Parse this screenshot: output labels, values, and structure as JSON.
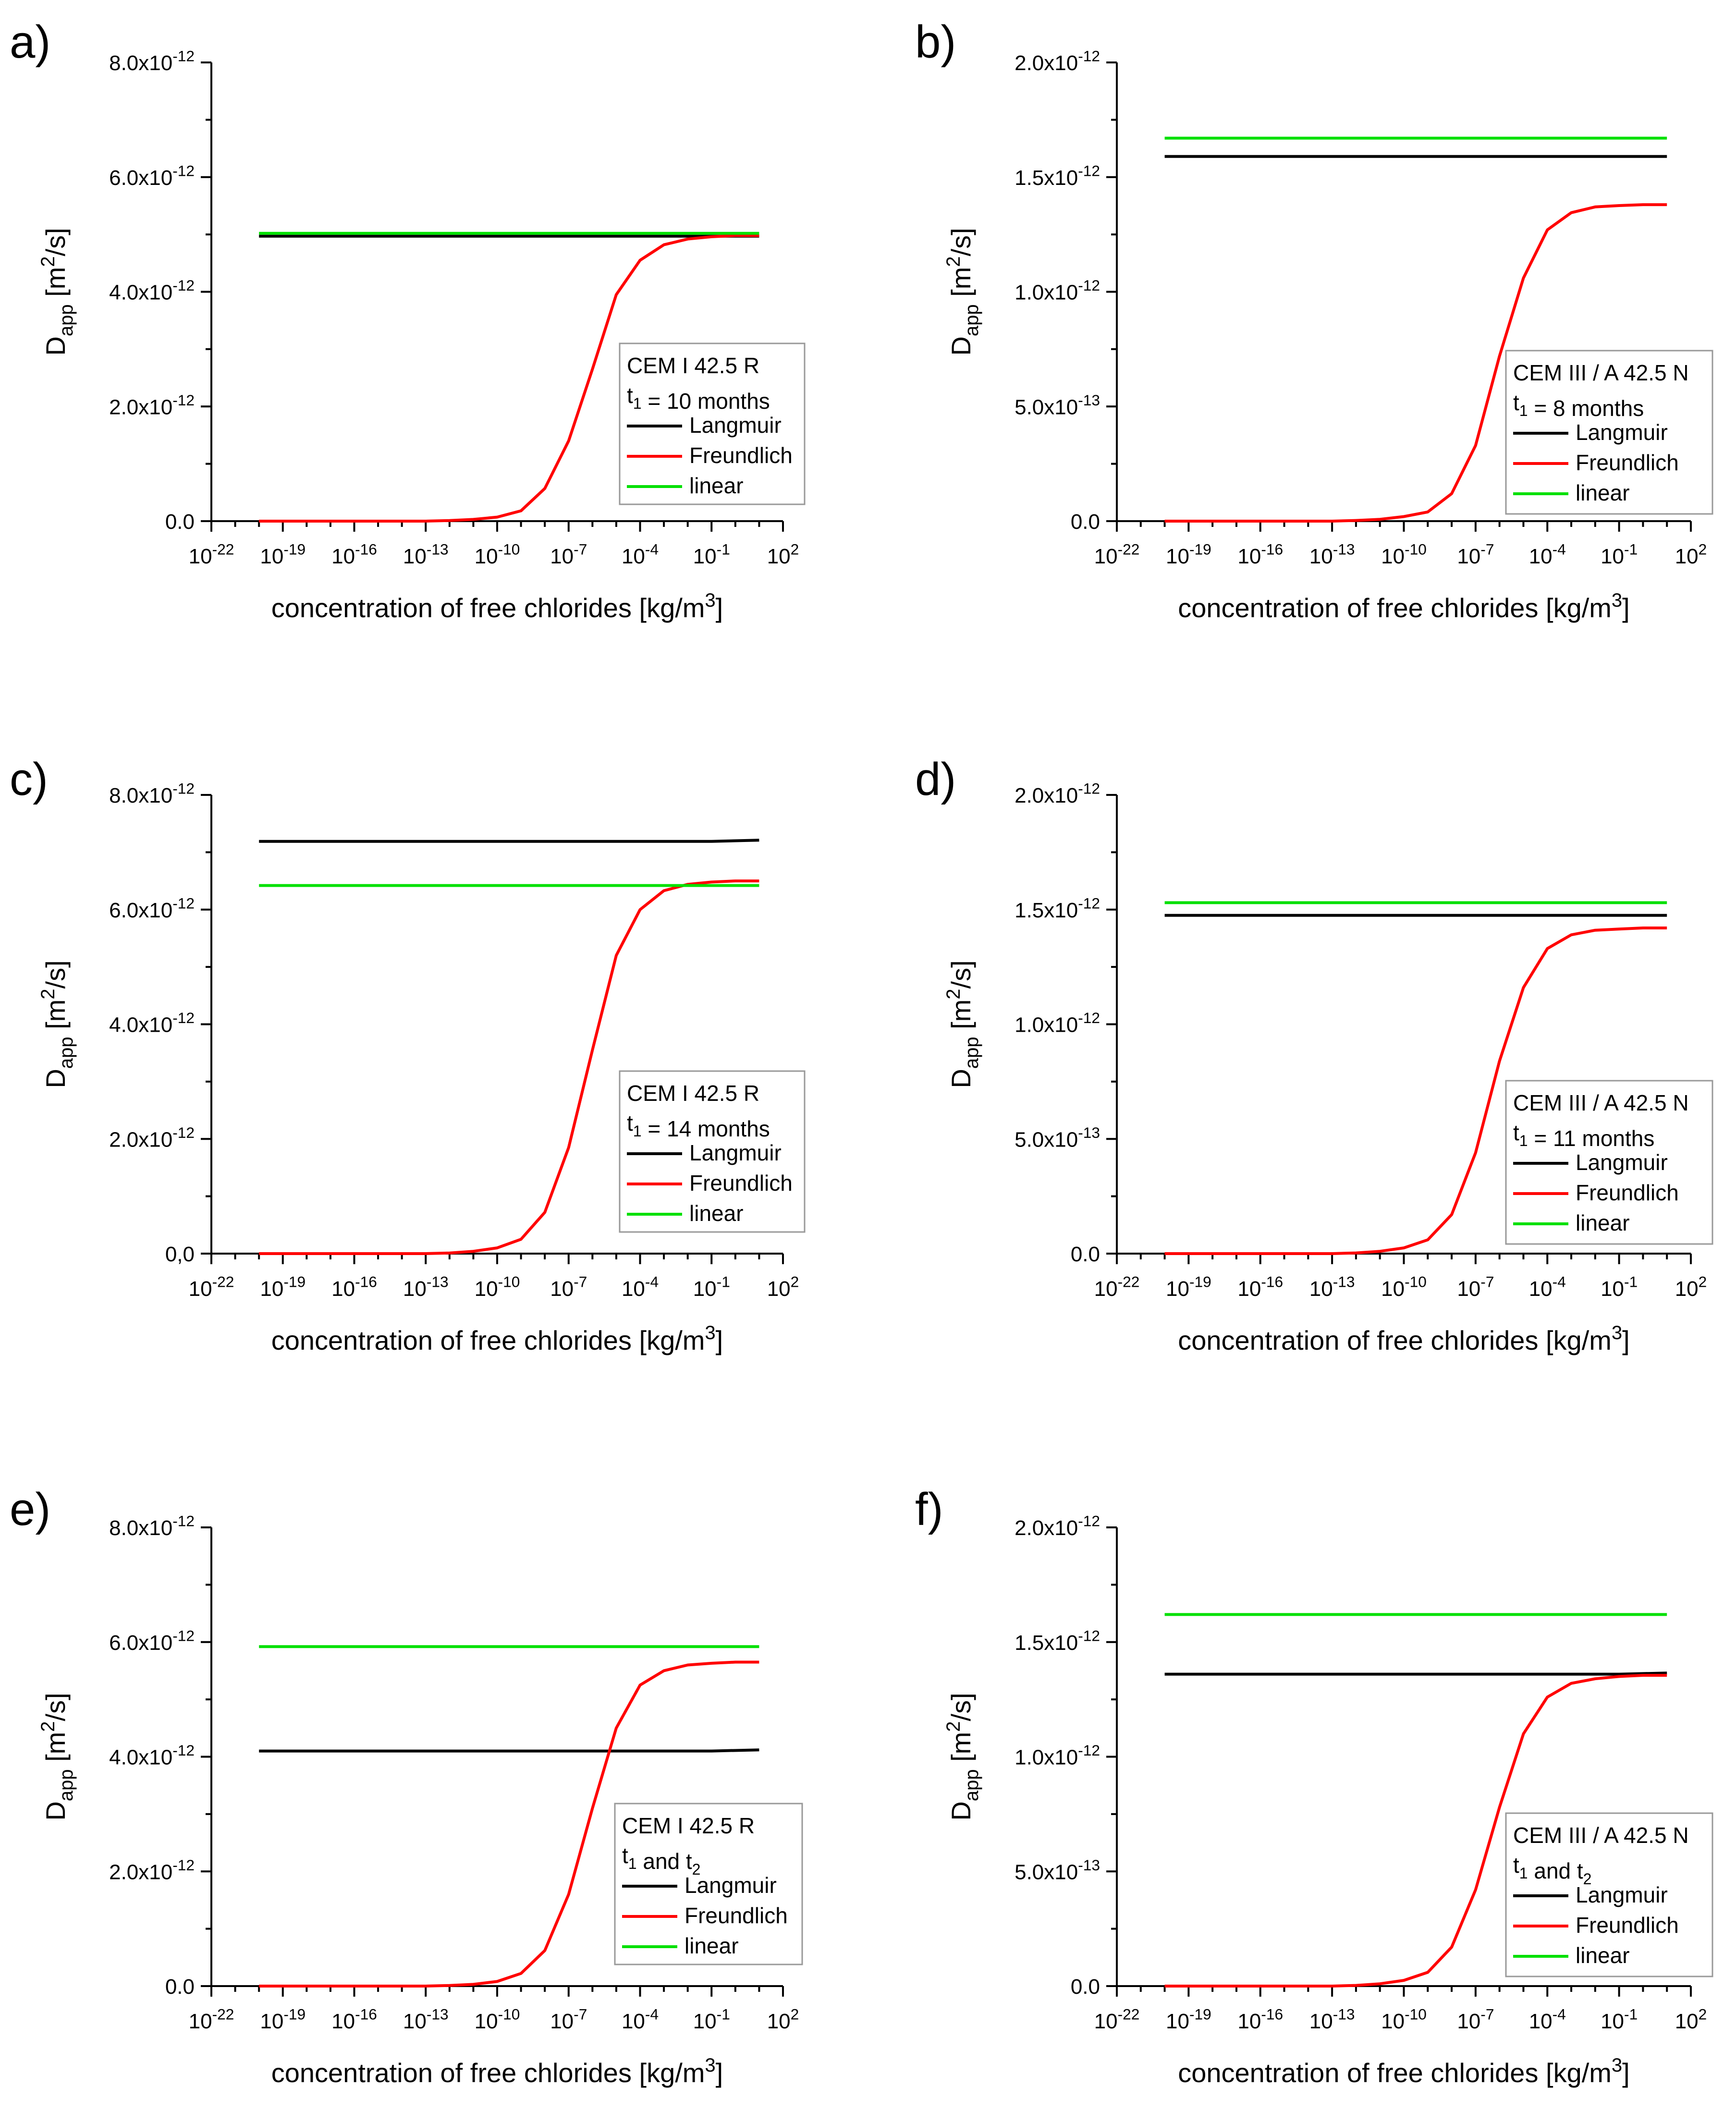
{
  "figure": {
    "panel_labels": [
      "a)",
      "b)",
      "c)",
      "d)",
      "e)",
      "f)"
    ]
  },
  "chart_data": [
    {
      "type": "line",
      "panel": "a)",
      "xlabel": "concentration of free chlorides [kg/m3]",
      "ylabel": "Dapp [m2/s]",
      "xscale": "log",
      "xlim": [
        1e-22,
        100.0
      ],
      "ylim": [
        0,
        8e-12
      ],
      "xticks": [
        "10-22",
        "10-19",
        "10-16",
        "10-13",
        "10-10",
        "10-7",
        "10-4",
        "10-1",
        "102"
      ],
      "yticks": [
        "0.0",
        "2.0x10-12",
        "4.0x10-12",
        "6.0x10-12",
        "8.0x10-12"
      ],
      "legend": {
        "position": "lower-right",
        "title": [
          "CEM I 42.5 R",
          "t1 = 10 months"
        ]
      },
      "series": [
        {
          "name": "Langmuir",
          "color": "#000000",
          "x": [
            1e-20,
            10
          ],
          "y": [
            4.97e-12,
            4.97e-12
          ]
        },
        {
          "name": "Freundlich",
          "color": "#ff0000",
          "x": [
            1e-20,
            1e-19,
            1e-18,
            1e-17,
            1e-16,
            1e-15,
            1e-14,
            1e-13,
            1e-12,
            1e-11,
            1e-10,
            1e-09,
            1e-08,
            1e-07,
            1e-06,
            1e-05,
            0.0001,
            0.001,
            0.01,
            0.1,
            1,
            10
          ],
          "y": [
            0,
            0,
            0,
            0,
            0,
            0,
            0,
            0,
            1e-14,
            3e-14,
            7e-14,
            1.8e-13,
            5.7e-13,
            1.4e-12,
            2.65e-12,
            3.95e-12,
            4.55e-12,
            4.82e-12,
            4.92e-12,
            4.96e-12,
            4.98e-12,
            4.98e-12
          ]
        },
        {
          "name": "linear",
          "color": "#00e000",
          "x": [
            1e-20,
            10
          ],
          "y": [
            5.02e-12,
            5.02e-12
          ]
        }
      ]
    },
    {
      "type": "line",
      "panel": "b)",
      "xlabel": "concentration of free chlorides [kg/m3]",
      "ylabel": "Dapp [m2/s]",
      "xscale": "log",
      "xlim": [
        1e-22,
        100.0
      ],
      "ylim": [
        0,
        2e-12
      ],
      "xticks": [
        "10-22",
        "10-19",
        "10-16",
        "10-13",
        "10-10",
        "10-7",
        "10-4",
        "10-1",
        "102"
      ],
      "yticks": [
        "0.0",
        "5.0x10-13",
        "1.0x10-12",
        "1.5x10-12",
        "2.0x10-12"
      ],
      "legend": {
        "position": "lower-right",
        "title": [
          "CEM III / A 42.5 N",
          "t1 = 8 months"
        ]
      },
      "series": [
        {
          "name": "Langmuir",
          "color": "#000000",
          "x": [
            1e-20,
            10
          ],
          "y": [
            1.59e-12,
            1.59e-12
          ]
        },
        {
          "name": "Freundlich",
          "color": "#ff0000",
          "x": [
            1e-20,
            1e-19,
            1e-18,
            1e-17,
            1e-16,
            1e-15,
            1e-14,
            1e-13,
            1e-12,
            1e-11,
            1e-10,
            1e-09,
            1e-08,
            1e-07,
            1e-06,
            1e-05,
            0.0001,
            0.001,
            0.01,
            0.1,
            1,
            10
          ],
          "y": [
            0,
            0,
            0,
            0,
            0,
            0,
            0,
            0,
            3e-15,
            8e-15,
            2e-14,
            4e-14,
            1.2e-13,
            3.3e-13,
            7.2e-13,
            1.06e-12,
            1.27e-12,
            1.345e-12,
            1.37e-12,
            1.376e-12,
            1.38e-12,
            1.38e-12
          ]
        },
        {
          "name": "linear",
          "color": "#00e000",
          "x": [
            1e-20,
            10
          ],
          "y": [
            1.67e-12,
            1.67e-12
          ]
        }
      ]
    },
    {
      "type": "line",
      "panel": "c)",
      "xlabel": "concentration of free chlorides [kg/m3]",
      "ylabel": "Dapp [m2/s]",
      "xscale": "log",
      "xlim": [
        1e-22,
        100.0
      ],
      "ylim": [
        0,
        8e-12
      ],
      "xticks": [
        "10-22",
        "10-19",
        "10-16",
        "10-13",
        "10-10",
        "10-7",
        "10-4",
        "10-1",
        "102"
      ],
      "yticks": [
        "0,0",
        "2.0x10-12",
        "4.0x10-12",
        "6.0x10-12",
        "8.0x10-12"
      ],
      "legend": {
        "position": "lower-right",
        "title": [
          "CEM I 42.5 R",
          "t1 = 14 months"
        ]
      },
      "series": [
        {
          "name": "Langmuir",
          "color": "#000000",
          "x": [
            1e-20,
            0.1,
            10
          ],
          "y": [
            7.19e-12,
            7.19e-12,
            7.21e-12
          ]
        },
        {
          "name": "Freundlich",
          "color": "#ff0000",
          "x": [
            1e-20,
            1e-19,
            1e-18,
            1e-17,
            1e-16,
            1e-15,
            1e-14,
            1e-13,
            1e-12,
            1e-11,
            1e-10,
            1e-09,
            1e-08,
            1e-07,
            1e-06,
            1e-05,
            0.0001,
            0.001,
            0.01,
            0.1,
            1,
            10
          ],
          "y": [
            0,
            0,
            0,
            0,
            0,
            0,
            0,
            0,
            1e-14,
            4e-14,
            1e-13,
            2.5e-13,
            7.2e-13,
            1.85e-12,
            3.55e-12,
            5.2e-12,
            6e-12,
            6.33e-12,
            6.44e-12,
            6.48e-12,
            6.5e-12,
            6.5e-12
          ]
        },
        {
          "name": "linear",
          "color": "#00e000",
          "x": [
            1e-20,
            10
          ],
          "y": [
            6.42e-12,
            6.42e-12
          ]
        }
      ]
    },
    {
      "type": "line",
      "panel": "d)",
      "xlabel": "concentration of free chlorides [kg/m3]",
      "ylabel": "Dapp [m2/s]",
      "xscale": "log",
      "xlim": [
        1e-22,
        100.0
      ],
      "ylim": [
        0,
        2e-12
      ],
      "xticks": [
        "10-22",
        "10-19",
        "10-16",
        "10-13",
        "10-10",
        "10-7",
        "10-4",
        "10-1",
        "102"
      ],
      "yticks": [
        "0.0",
        "5.0x10-13",
        "1.0x10-12",
        "1.5x10-12",
        "2.0x10-12"
      ],
      "legend": {
        "position": "lower-right",
        "title": [
          "CEM III / A 42.5 N",
          "t1 = 11 months"
        ]
      },
      "series": [
        {
          "name": "Langmuir",
          "color": "#000000",
          "x": [
            1e-20,
            10
          ],
          "y": [
            1.475e-12,
            1.475e-12
          ]
        },
        {
          "name": "Freundlich",
          "color": "#ff0000",
          "x": [
            1e-20,
            1e-19,
            1e-18,
            1e-17,
            1e-16,
            1e-15,
            1e-14,
            1e-13,
            1e-12,
            1e-11,
            1e-10,
            1e-09,
            1e-08,
            1e-07,
            1e-06,
            1e-05,
            0.0001,
            0.001,
            0.01,
            0.1,
            1,
            10
          ],
          "y": [
            0,
            0,
            0,
            0,
            0,
            0,
            0,
            0,
            3e-15,
            1e-14,
            2.5e-14,
            6e-14,
            1.7e-13,
            4.4e-13,
            8.4e-13,
            1.16e-12,
            1.33e-12,
            1.39e-12,
            1.41e-12,
            1.415e-12,
            1.42e-12,
            1.42e-12
          ]
        },
        {
          "name": "linear",
          "color": "#00e000",
          "x": [
            1e-20,
            10
          ],
          "y": [
            1.53e-12,
            1.53e-12
          ]
        }
      ]
    },
    {
      "type": "line",
      "panel": "e)",
      "xlabel": "concentration of free chlorides [kg/m3]",
      "ylabel": "Dapp [m2/s]",
      "xscale": "log",
      "xlim": [
        1e-22,
        100.0
      ],
      "ylim": [
        0,
        8e-12
      ],
      "xticks": [
        "10-22",
        "10-19",
        "10-16",
        "10-13",
        "10-10",
        "10-7",
        "10-4",
        "10-1",
        "102"
      ],
      "yticks": [
        "0.0",
        "2.0x10-12",
        "4.0x10-12",
        "6.0x10-12",
        "8.0x10-12"
      ],
      "legend": {
        "position": "lower-right",
        "title": [
          "CEM I 42.5 R",
          "t1 and t2"
        ]
      },
      "series": [
        {
          "name": "Langmuir",
          "color": "#000000",
          "x": [
            1e-20,
            0.1,
            10
          ],
          "y": [
            4.1e-12,
            4.1e-12,
            4.12e-12
          ]
        },
        {
          "name": "Freundlich",
          "color": "#ff0000",
          "x": [
            1e-20,
            1e-19,
            1e-18,
            1e-17,
            1e-16,
            1e-15,
            1e-14,
            1e-13,
            1e-12,
            1e-11,
            1e-10,
            1e-09,
            1e-08,
            1e-07,
            1e-06,
            1e-05,
            0.0001,
            0.001,
            0.01,
            0.1,
            1,
            10
          ],
          "y": [
            0,
            0,
            0,
            0,
            0,
            0,
            0,
            0,
            1e-14,
            3e-14,
            8e-14,
            2.2e-13,
            6.2e-13,
            1.6e-12,
            3.1e-12,
            4.5e-12,
            5.25e-12,
            5.5e-12,
            5.6e-12,
            5.63e-12,
            5.65e-12,
            5.65e-12
          ]
        },
        {
          "name": "linear",
          "color": "#00e000",
          "x": [
            1e-20,
            10
          ],
          "y": [
            5.92e-12,
            5.92e-12
          ]
        }
      ]
    },
    {
      "type": "line",
      "panel": "f)",
      "xlabel": "concentration of free chlorides [kg/m3]",
      "ylabel": "Dapp [m2/s]",
      "xscale": "log",
      "xlim": [
        1e-22,
        100.0
      ],
      "ylim": [
        0,
        2e-12
      ],
      "xticks": [
        "10-22",
        "10-19",
        "10-16",
        "10-13",
        "10-10",
        "10-7",
        "10-4",
        "10-1",
        "102"
      ],
      "yticks": [
        "0.0",
        "5.0x10-13",
        "1.0x10-12",
        "1.5x10-12",
        "2.0x10-12"
      ],
      "legend": {
        "position": "lower-right",
        "title": [
          "CEM III / A 42.5 N",
          "t1 and t2"
        ]
      },
      "series": [
        {
          "name": "Langmuir",
          "color": "#000000",
          "x": [
            1e-20,
            0.1,
            10
          ],
          "y": [
            1.36e-12,
            1.36e-12,
            1.365e-12
          ]
        },
        {
          "name": "Freundlich",
          "color": "#ff0000",
          "x": [
            1e-20,
            1e-19,
            1e-18,
            1e-17,
            1e-16,
            1e-15,
            1e-14,
            1e-13,
            1e-12,
            1e-11,
            1e-10,
            1e-09,
            1e-08,
            1e-07,
            1e-06,
            1e-05,
            0.0001,
            0.001,
            0.01,
            0.1,
            1,
            10
          ],
          "y": [
            0,
            0,
            0,
            0,
            0,
            0,
            0,
            0,
            3e-15,
            1e-14,
            2.5e-14,
            6e-14,
            1.7e-13,
            4.2e-13,
            7.8e-13,
            1.1e-12,
            1.26e-12,
            1.32e-12,
            1.34e-12,
            1.35e-12,
            1.355e-12,
            1.355e-12
          ]
        },
        {
          "name": "linear",
          "color": "#00e000",
          "x": [
            1e-20,
            10
          ],
          "y": [
            1.62e-12,
            1.62e-12
          ]
        }
      ]
    }
  ]
}
